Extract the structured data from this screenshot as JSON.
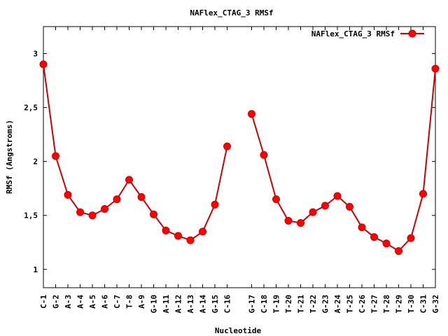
{
  "chart_data": {
    "type": "line",
    "title": "NAFlex_CTAG_3 RMSf",
    "xlabel": "Nucleotide",
    "ylabel": "RMSf (Angstroms)",
    "ylim": [
      0.83,
      3.25
    ],
    "yticks": [
      1,
      1.5,
      2,
      2.5,
      3
    ],
    "ytick_labels": [
      "1",
      "1,5",
      "2",
      "2,5",
      "3"
    ],
    "legend_position": "top-right",
    "grid": false,
    "series_color": "#ff0000",
    "line_color": "#cc0000",
    "categories": [
      "C-1",
      "G-2",
      "A-3",
      "A-4",
      "A-5",
      "A-6",
      "C-7",
      "T-8",
      "A-9",
      "G-10",
      "A-11",
      "A-12",
      "A-13",
      "A-14",
      "G-15",
      "C-16",
      "G-17",
      "C-18",
      "T-19",
      "T-20",
      "T-21",
      "T-22",
      "G-23",
      "A-24",
      "T-25",
      "C-26",
      "T-27",
      "T-28",
      "T-29",
      "T-30",
      "C-31",
      "G-32"
    ],
    "x": [
      1,
      2,
      3,
      4,
      5,
      6,
      7,
      8,
      9,
      10,
      11,
      12,
      13,
      14,
      15,
      16,
      18,
      19,
      20,
      21,
      22,
      23,
      24,
      25,
      26,
      27,
      28,
      29,
      30,
      31,
      32,
      33
    ],
    "xlim": [
      1,
      33
    ],
    "series": [
      {
        "name": "NAFlex_CTAG_3 RMSf",
        "segments": [
          [
            2.9,
            2.05,
            1.69,
            1.53,
            1.5,
            1.56,
            1.65,
            1.83,
            1.67,
            1.51,
            1.36,
            1.31,
            1.27,
            1.35,
            1.6,
            2.14
          ],
          [
            2.44,
            2.06,
            1.65,
            1.45,
            1.43,
            1.53,
            1.59,
            1.68,
            1.58,
            1.39,
            1.3,
            1.24,
            1.17,
            1.29,
            1.7,
            2.86
          ]
        ]
      }
    ]
  }
}
